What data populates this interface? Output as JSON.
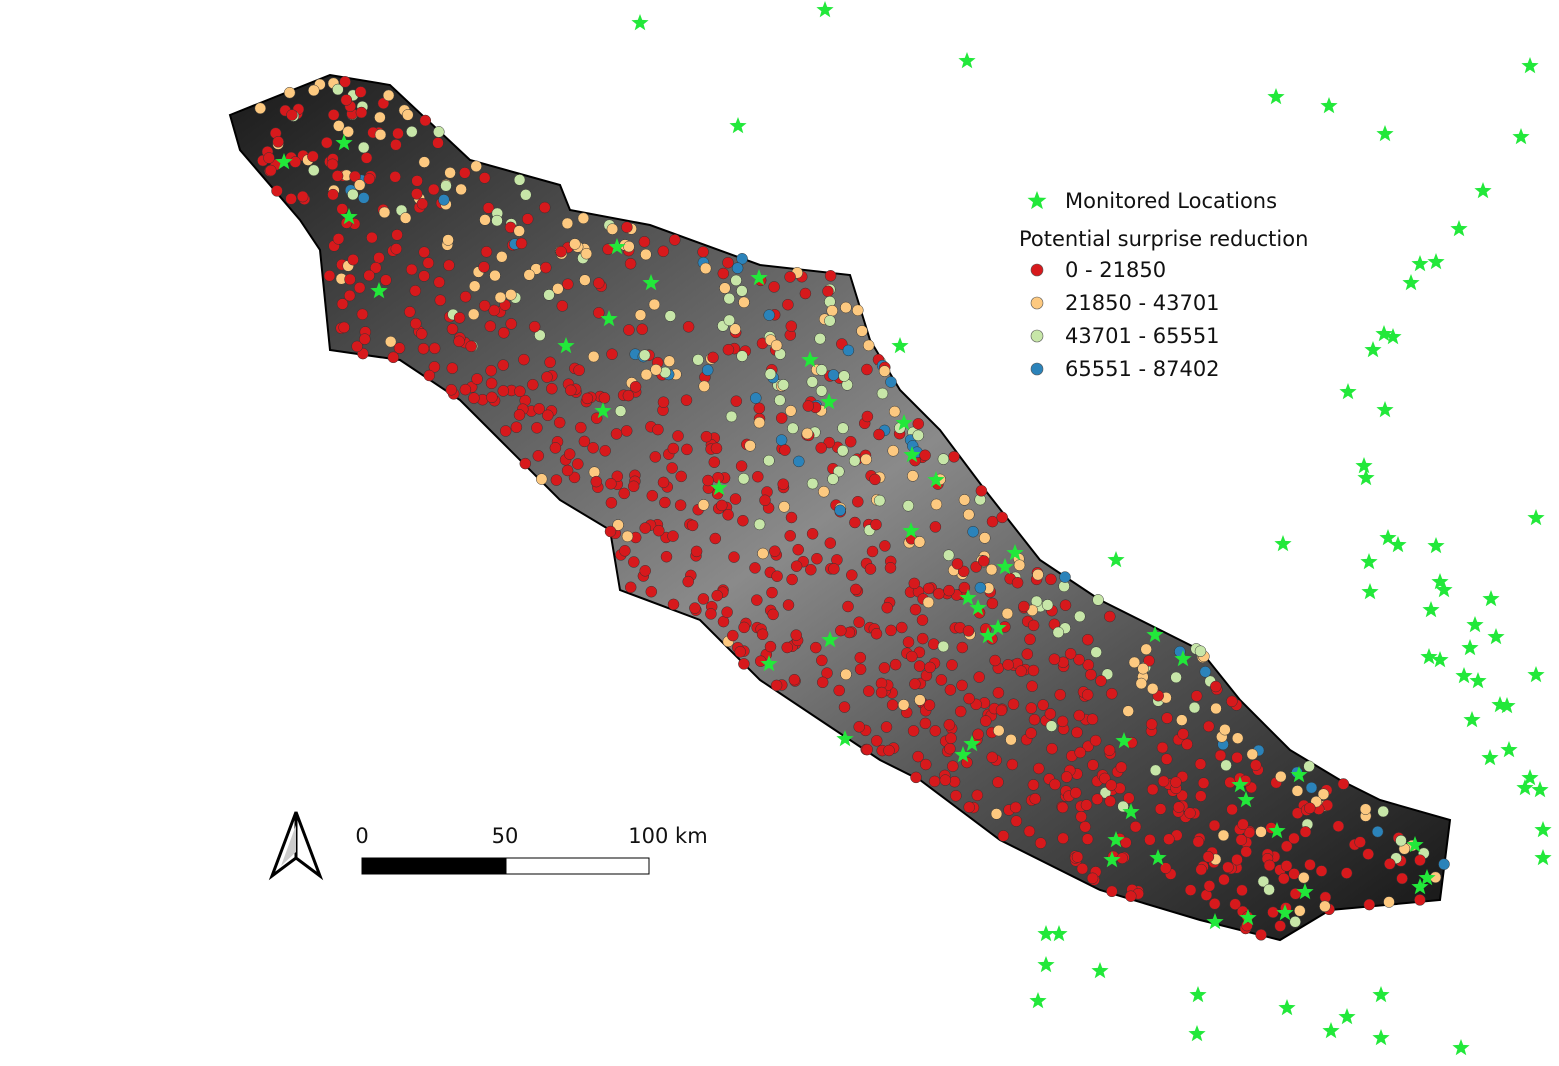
{
  "legend": {
    "star_label": "Monitored Locations",
    "star_color": "#22e83a",
    "title": "Potential surprise reduction",
    "classes": [
      {
        "label": "0 - 21850",
        "color": "#d7191c"
      },
      {
        "label": "21850 - 43701",
        "color": "#fdc980"
      },
      {
        "label": "43701 - 65551",
        "color": "#c7e6a8"
      },
      {
        "label": "65551 - 87402",
        "color": "#2b83ba"
      }
    ]
  },
  "scale_bar": {
    "labels": [
      "0",
      "50",
      "100 km"
    ]
  }
}
